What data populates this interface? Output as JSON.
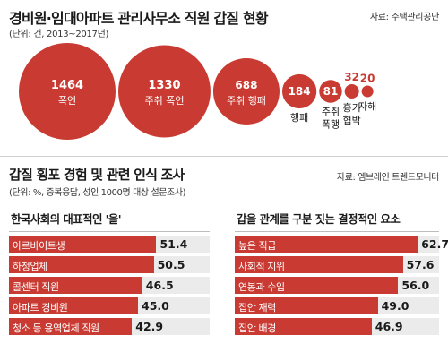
{
  "header": {
    "title": "경비원·임대아파트 관리사무소 직원 갑질 현황",
    "source": "자료: 주택관리공단",
    "unit": "(단위: 건, 2013~2017년)"
  },
  "section2": {
    "title": "갑질 횡포 경험 및 관련 인식 조사",
    "source": "자료: 엠브레인 트렌드모니터",
    "unit": "(단위: %, 중복응답, 성인 1000명 대상 설문조사)"
  },
  "colors": {
    "accent": "#c93b32",
    "track": "#ebebeb"
  },
  "chart_data": [
    {
      "type": "bubble",
      "title": "경비원·임대아파트 관리사무소 직원 갑질 현황",
      "unit": "건",
      "categories": [
        "폭언",
        "주취 폭언",
        "주취 행패",
        "행패",
        "주취 폭행",
        "흉기 협박",
        "자해"
      ],
      "values": [
        1464,
        1330,
        688,
        184,
        81,
        32,
        20
      ]
    },
    {
      "type": "bar",
      "orientation": "horizontal",
      "title": "한국사회의 대표적인 '을'",
      "unit": "%",
      "categories": [
        "아르바이트생",
        "하청업체",
        "콜센터 직원",
        "아파트 경비원",
        "청소 등 용역업체 직원"
      ],
      "values": [
        51.4,
        50.5,
        46.5,
        45.0,
        42.9
      ],
      "value_labels": [
        "51.4",
        "50.5",
        "46.5",
        "45.0",
        "42.9"
      ],
      "xlim": [
        0,
        70
      ]
    },
    {
      "type": "bar",
      "orientation": "horizontal",
      "title": "갑을 관계를 구분 짓는 결정적인 요소",
      "unit": "%",
      "categories": [
        "높은 직급",
        "사회적 지위",
        "연봉과 수입",
        "집안 재력",
        "집안 배경"
      ],
      "values": [
        62.7,
        57.6,
        56.0,
        49.0,
        46.9
      ],
      "value_labels": [
        "62.7",
        "57.6",
        "56.0",
        "49.0",
        "46.9"
      ],
      "xlim": [
        0,
        70
      ]
    }
  ]
}
